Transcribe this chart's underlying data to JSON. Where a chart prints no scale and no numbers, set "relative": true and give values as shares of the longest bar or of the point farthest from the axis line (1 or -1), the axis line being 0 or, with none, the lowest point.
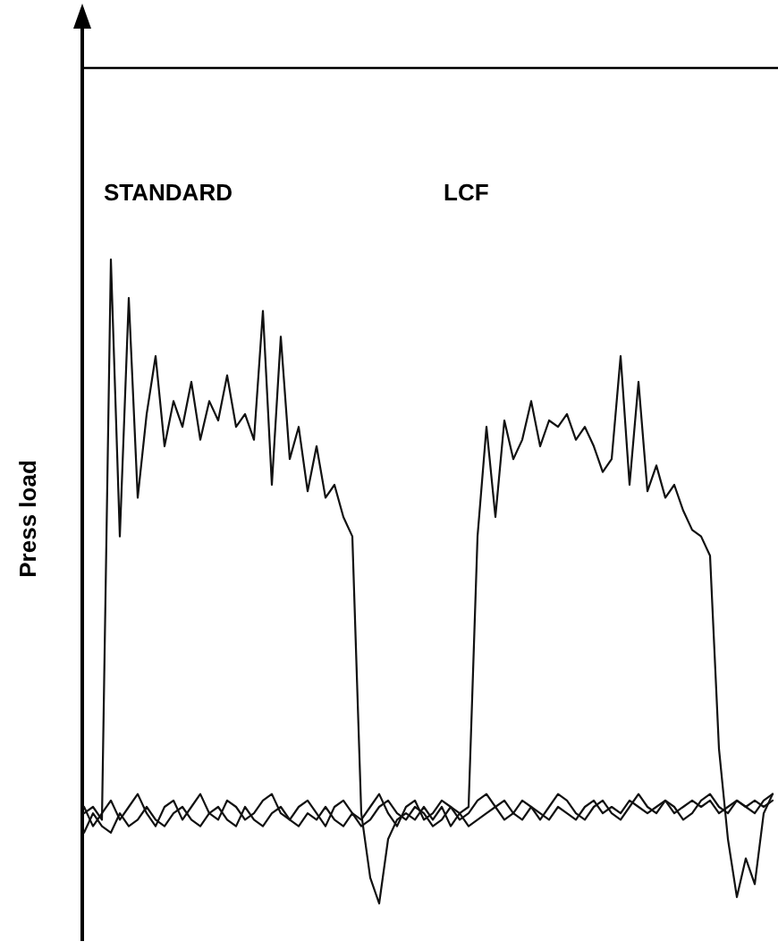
{
  "chart_data": {
    "type": "line",
    "relative": true,
    "ylabel": "Press load",
    "annotations": [
      "STANDARD",
      "LCF"
    ],
    "categories": [
      null,
      null,
      null,
      null,
      null,
      null,
      null,
      null,
      null,
      null,
      null,
      null,
      null,
      null,
      null,
      null,
      null,
      null,
      null,
      null,
      null,
      null,
      null,
      null,
      null,
      null,
      null,
      null,
      null,
      null,
      null,
      null,
      null,
      null,
      null,
      null,
      null,
      null,
      null,
      null,
      null,
      null,
      null,
      null,
      null,
      null,
      null,
      null,
      null,
      null,
      null,
      null,
      null,
      null,
      null,
      null,
      null,
      null,
      null,
      null,
      null,
      null,
      null,
      null,
      null,
      null,
      null,
      null,
      null,
      null,
      null,
      null,
      null,
      null,
      null,
      null,
      null,
      null
    ],
    "series": [
      {
        "color": "#111111",
        "values": [
          0.14,
          0.15,
          0.13,
          1,
          0.57,
          0.94,
          0.63,
          0.76,
          0.85,
          0.71,
          0.78,
          0.74,
          0.81,
          0.72,
          0.78,
          0.75,
          0.82,
          0.74,
          0.76,
          0.72,
          0.92,
          0.65,
          0.88,
          0.69,
          0.74,
          0.64,
          0.71,
          0.63,
          0.65,
          0.6,
          0.57,
          0.14,
          0.04,
          0,
          0.1,
          0.13,
          0.14,
          0.13,
          0.15,
          0.13,
          0.15,
          0.12,
          0.14,
          0.15,
          0.57,
          0.74,
          0.6,
          0.75,
          0.69,
          0.72,
          0.78,
          0.71,
          0.75,
          0.74,
          0.76,
          0.72,
          0.74,
          0.71,
          0.67,
          0.69,
          0.85,
          0.65,
          0.81,
          0.64,
          0.68,
          0.63,
          0.65,
          0.61,
          0.58,
          0.57,
          0.54,
          0.24,
          0.1,
          0.01,
          0.07,
          0.03,
          0.14,
          0.17
        ]
      },
      {
        "color": "#111111",
        "values": [
          0.15,
          0.12,
          0.14,
          0.16,
          0.13,
          0.15,
          0.17,
          0.14,
          0.12,
          0.15,
          0.16,
          0.13,
          0.15,
          0.17,
          0.14,
          0.13,
          0.16,
          0.15,
          0.13,
          0.14,
          0.16,
          0.17,
          0.14,
          0.13,
          0.15,
          0.16,
          0.14,
          0.12,
          0.15,
          0.16,
          0.14,
          0.13,
          0.15,
          0.17,
          0.14,
          0.12,
          0.15,
          0.16,
          0.13,
          0.14,
          0.16,
          0.15,
          0.13,
          0.14,
          0.16,
          0.17,
          0.15,
          0.13,
          0.14,
          0.16,
          0.15,
          0.13,
          0.15,
          0.17,
          0.16,
          0.14,
          0.13,
          0.15,
          0.16,
          0.14,
          0.13,
          0.15,
          0.17,
          0.15,
          0.14,
          0.16,
          0.15,
          0.13,
          0.14,
          0.16,
          0.17,
          0.15,
          0.14,
          0.16,
          0.15,
          0.14,
          0.16,
          0.17
        ]
      },
      {
        "color": "#111111",
        "values": [
          0.11,
          0.14,
          0.12,
          0.11,
          0.14,
          0.12,
          0.13,
          0.15,
          0.13,
          0.12,
          0.14,
          0.15,
          0.13,
          0.12,
          0.14,
          0.15,
          0.13,
          0.12,
          0.15,
          0.13,
          0.12,
          0.14,
          0.15,
          0.13,
          0.12,
          0.14,
          0.13,
          0.15,
          0.13,
          0.12,
          0.14,
          0.12,
          0.13,
          0.15,
          0.16,
          0.14,
          0.13,
          0.15,
          0.14,
          0.12,
          0.13,
          0.15,
          0.14,
          0.12,
          0.13,
          0.14,
          0.15,
          0.16,
          0.14,
          0.13,
          0.15,
          0.14,
          0.13,
          0.15,
          0.14,
          0.13,
          0.15,
          0.16,
          0.14,
          0.15,
          0.14,
          0.16,
          0.15,
          0.14,
          0.15,
          0.16,
          0.14,
          0.15,
          0.16,
          0.15,
          0.16,
          0.14,
          0.15,
          0.16,
          0.15,
          0.16,
          0.15,
          0.16
        ]
      }
    ]
  }
}
